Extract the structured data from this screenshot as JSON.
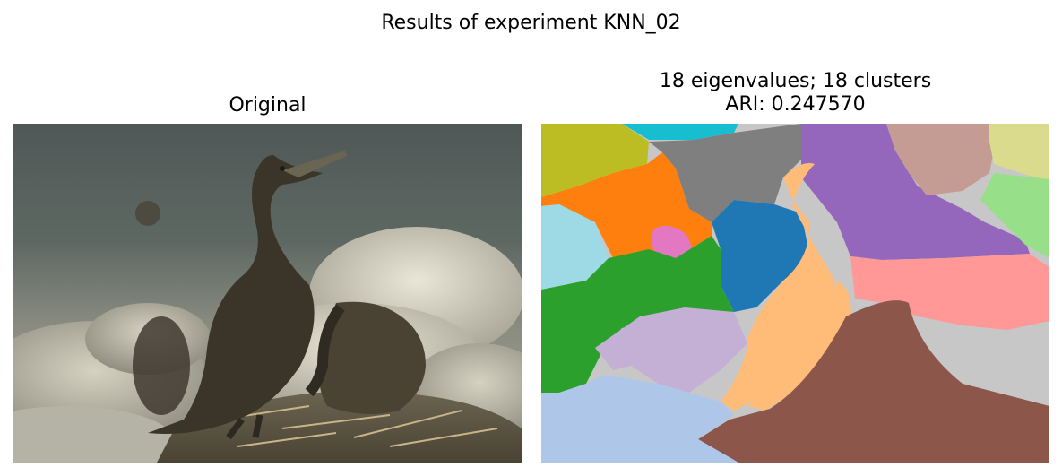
{
  "figure": {
    "suptitle": "Results of experiment KNN_02"
  },
  "panels": [
    {
      "title": "Original"
    },
    {
      "title_line1": "18 eigenvalues; 18 clusters",
      "title_line2": "ARI: 0.247570"
    }
  ],
  "colors": {
    "tab20": [
      "#1f77b4",
      "#aec7e8",
      "#ff7f0e",
      "#ffbb78",
      "#2ca02c",
      "#98df8a",
      "#d62728",
      "#ff9896",
      "#9467bd",
      "#c5b0d5",
      "#8c564b",
      "#c49c94",
      "#e377c2",
      "#f7b6d2",
      "#7f7f7f",
      "#c7c7c7",
      "#bcbd22",
      "#dbdb8d",
      "#17becf",
      "#9edae5"
    ]
  }
}
